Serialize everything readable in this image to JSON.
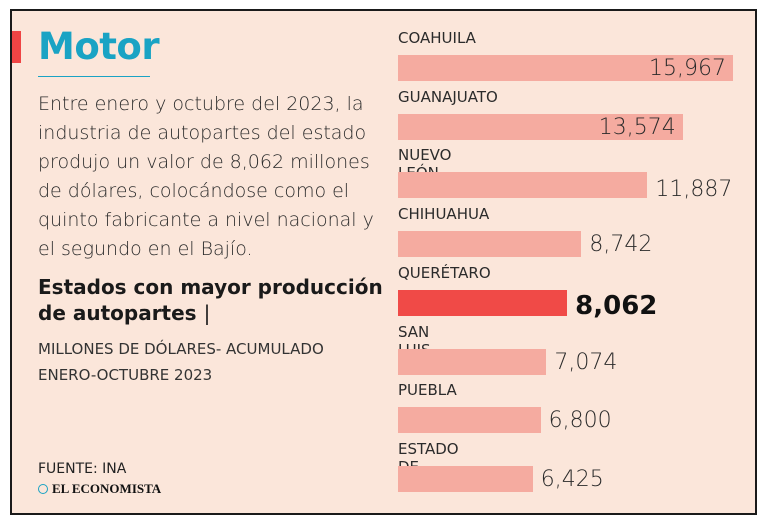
{
  "header": {
    "title": "Motor",
    "intro": "Entre enero y octubre del 2023, la industria de autopartes del estado produjo un valor de 8,062 millones de dólares, colocándose como el quinto fabricante a nivel nacional y el segundo en el Bajío."
  },
  "chart_title": {
    "main": "Estados con mayor producción de autopartes",
    "separator": "|",
    "subtitle": "MILLONES DE DÓLARES- ACUMULADO ENERO-OCTUBRE 2023"
  },
  "footer": {
    "source": "FUENTE: INA",
    "brand": "EL ECONOMISTA"
  },
  "colors": {
    "accent": "#1aa3c4",
    "bar": "#f5aba0",
    "highlight": "#f04a47",
    "background": "#fbe6da"
  },
  "chart_data": {
    "type": "bar",
    "orientation": "horizontal",
    "title": "Estados con mayor producción de autopartes",
    "units": "Millones de dólares",
    "categories": [
      "COAHUILA",
      "GUANAJUATO",
      "NUEVO LEÓN",
      "CHIHUAHUA",
      "QUERÉTARO",
      "SAN LUIS POTOSÍ",
      "PUEBLA",
      "ESTADO DE MÉXICO"
    ],
    "values": [
      15967,
      13574,
      11887,
      8742,
      8062,
      7074,
      6800,
      6425
    ],
    "value_labels": [
      "15,967",
      "13,574",
      "11,887",
      "8,742",
      "8,062",
      "7,074",
      "6,800",
      "6,425"
    ],
    "highlight": "QUERÉTARO",
    "xlim": [
      0,
      15967
    ]
  }
}
